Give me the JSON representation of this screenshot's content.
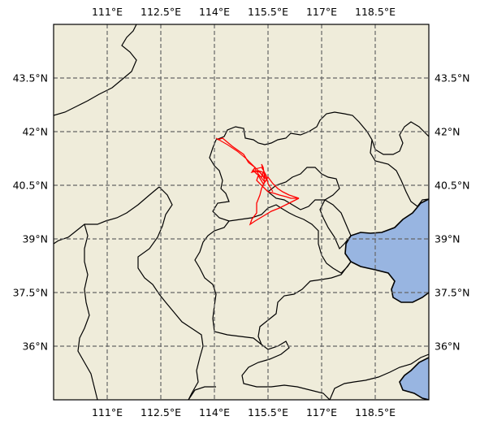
{
  "map": {
    "lon_range": [
      109.5,
      120.0
    ],
    "lat_range": [
      34.5,
      45.0
    ],
    "lon_ticks": [
      {
        "value": 111.0,
        "label": "111°E"
      },
      {
        "value": 112.5,
        "label": "112.5°E"
      },
      {
        "value": 114.0,
        "label": "114°E"
      },
      {
        "value": 115.5,
        "label": "115.5°E"
      },
      {
        "value": 117.0,
        "label": "117°E"
      },
      {
        "value": 118.5,
        "label": "118.5°E"
      }
    ],
    "lat_ticks": [
      {
        "value": 43.5,
        "label": "43.5°N"
      },
      {
        "value": 42.0,
        "label": "42°N"
      },
      {
        "value": 40.5,
        "label": "40.5°N"
      },
      {
        "value": 39.0,
        "label": "39°N"
      },
      {
        "value": 37.5,
        "label": "37.5°N"
      },
      {
        "value": 36.0,
        "label": "36°N"
      }
    ],
    "colors": {
      "land": "#efecda",
      "ocean": "#98b5e1",
      "border": "#000000",
      "gridline": "#666666",
      "track": "#ff0000"
    },
    "gridlines_visible": true
  }
}
